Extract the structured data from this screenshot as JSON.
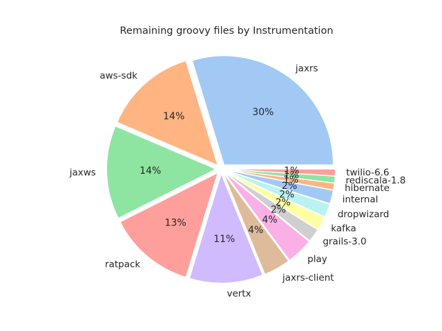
{
  "chart_data": {
    "type": "pie",
    "title": "Remaining groovy files by Instrumentation",
    "slices": [
      {
        "label": "jaxrs",
        "value": 30,
        "pct_label": "30%",
        "color": "#a1c9f4"
      },
      {
        "label": "aws-sdk",
        "value": 14,
        "pct_label": "14%",
        "color": "#ffb482"
      },
      {
        "label": "jaxws",
        "value": 14,
        "pct_label": "14%",
        "color": "#8de5a1"
      },
      {
        "label": "ratpack",
        "value": 13,
        "pct_label": "13%",
        "color": "#ff9f9b"
      },
      {
        "label": "vertx",
        "value": 11,
        "pct_label": "11%",
        "color": "#d0bbff"
      },
      {
        "label": "jaxrs-client",
        "value": 4,
        "pct_label": "4%",
        "color": "#debb9b"
      },
      {
        "label": "play",
        "value": 4,
        "pct_label": "4%",
        "color": "#fab0e4"
      },
      {
        "label": "grails-3.0",
        "value": 2,
        "pct_label": "2%",
        "color": "#cfcfcf"
      },
      {
        "label": "kafka",
        "value": 2,
        "pct_label": "2%",
        "color": "#fffea3"
      },
      {
        "label": "dropwizard",
        "value": 2,
        "pct_label": "2%",
        "color": "#b9f2f0"
      },
      {
        "label": "internal",
        "value": 2,
        "pct_label": "2%",
        "color": "#a1c9f4"
      },
      {
        "label": "hibernate",
        "value": 1,
        "pct_label": "1%",
        "color": "#ffb482"
      },
      {
        "label": "rediscala-1.8",
        "value": 1,
        "pct_label": "1%",
        "color": "#8de5a1"
      },
      {
        "label": "twilio-6.6",
        "value": 1,
        "pct_label": "1%",
        "color": "#ff9f9b"
      }
    ],
    "start_angle": "0° (3 o'clock), counter-clockwise",
    "exploded": true,
    "legend": "none"
  }
}
